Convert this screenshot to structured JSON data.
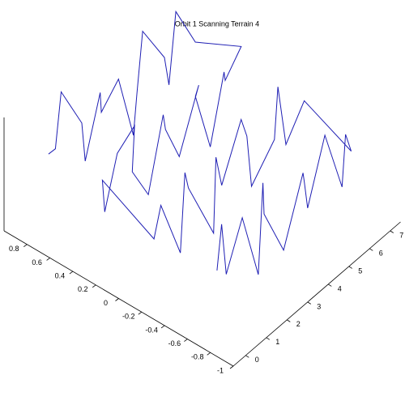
{
  "chart_data": {
    "type": "line3d",
    "title": "Orbit 1 Scanning Terrain 4",
    "series": [
      {
        "color": "#1f1fb4",
        "x": [
          0,
          0.5,
          1,
          1.5,
          2,
          2.5,
          3,
          3.5,
          4,
          4.5,
          5,
          5.5,
          6,
          6.5,
          7,
          7,
          6.5,
          6,
          5.5,
          5,
          4.5,
          4,
          3.5,
          3,
          2.5,
          2,
          1.5,
          1,
          0.5,
          0,
          0,
          0.5,
          1,
          1.5,
          2,
          2.5,
          3,
          3.5,
          4,
          4.5,
          5,
          5.5,
          6,
          6.5,
          7,
          7,
          6.5,
          6,
          5.5,
          5,
          4.5,
          4,
          3.5,
          3,
          2.5,
          2,
          1.5,
          1,
          0.5,
          0
        ],
        "y": [
          -0.75,
          -0.7,
          -0.65,
          -0.7,
          -0.75,
          -0.7,
          -0.62,
          -0.7,
          -0.78,
          -0.7,
          -0.64,
          -0.7,
          -0.76,
          -0.7,
          -0.66,
          -0.25,
          -0.18,
          -0.2,
          -0.26,
          -0.15,
          -0.2,
          -0.24,
          -0.16,
          -0.2,
          -0.27,
          -0.14,
          -0.2,
          -0.25,
          -0.17,
          -0.2,
          0.25,
          0.32,
          0.3,
          0.24,
          0.35,
          0.3,
          0.26,
          0.33,
          0.3,
          0.22,
          0.34,
          0.3,
          0.27,
          0.35,
          0.3,
          0.7,
          0.78,
          0.75,
          0.7,
          0.8,
          0.76,
          0.7,
          0.74,
          0.8,
          0.72,
          0.76,
          0.7,
          0.79,
          0.75,
          0.72
        ],
        "z": [
          0.2,
          0.8,
          -0.3,
          0.6,
          -0.5,
          0.9,
          0.1,
          -0.6,
          0.7,
          0.3,
          -0.4,
          0.8,
          -0.2,
          0.5,
          0.0,
          0.4,
          -0.3,
          0.9,
          0.2,
          -0.6,
          0.5,
          1.0,
          -0.1,
          0.6,
          -0.5,
          0.3,
          0.8,
          -0.4,
          0.5,
          0.1,
          0.6,
          -0.2,
          0.7,
          1.1,
          0.0,
          -0.5,
          0.8,
          0.3,
          -0.3,
          0.9,
          0.4,
          -0.6,
          0.6,
          0.2,
          0.7,
          0.3,
          0.9,
          -0.2,
          0.5,
          1.0,
          0.1,
          -0.4,
          0.7,
          0.2,
          0.8,
          -0.3,
          0.6,
          1.2,
          0.4,
          0.5
        ]
      }
    ],
    "xlim": [
      -0.6,
      7.5
    ],
    "xticks": [
      0,
      1,
      2,
      3,
      4,
      5,
      6,
      7
    ],
    "ylim": [
      -1,
      1
    ],
    "yticks": [
      -1,
      -0.8,
      -0.6,
      -0.4,
      -0.2,
      0,
      0.2,
      0.4,
      0.6,
      0.8
    ],
    "zlim": [
      -1,
      1
    ]
  }
}
